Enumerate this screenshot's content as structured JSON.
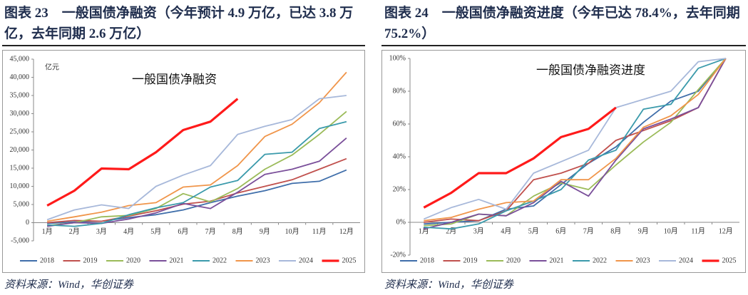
{
  "chart_data": [
    {
      "type": "line",
      "title": "图表 23　一般国债净融资（今年预计 4.9 万亿，已达 3.8 万亿，去年同期 2.6 万亿）",
      "annotation": "一般国债净融资",
      "unit": "亿元",
      "source": "资料来源：Wind，华创证券",
      "categories": [
        "1月",
        "2月",
        "3月",
        "4月",
        "5月",
        "6月",
        "7月",
        "8月",
        "9月",
        "10月",
        "11月",
        "12月"
      ],
      "ylim": [
        -5000,
        45000
      ],
      "yticks": [
        {
          "value": -5000,
          "label": "-5,000"
        },
        0,
        {
          "value": 5000,
          "label": "5,000"
        },
        {
          "value": 10000,
          "label": "10,000"
        },
        {
          "value": 15000,
          "label": "15,000"
        },
        {
          "value": 20000,
          "label": "20,000"
        },
        {
          "value": 25000,
          "label": "25,000"
        },
        {
          "value": 30000,
          "label": "30,000"
        },
        {
          "value": 35000,
          "label": "35,000"
        },
        {
          "value": 40000,
          "label": "40,000"
        },
        {
          "value": 45000,
          "label": "45,000"
        }
      ],
      "grid": false,
      "legend": "bottom",
      "series": [
        {
          "name": "2018",
          "color": "#3f6eaa",
          "values": [
            -200,
            200,
            400,
            1400,
            2200,
            3500,
            5500,
            7300,
            8800,
            10800,
            11400,
            14500
          ]
        },
        {
          "name": "2019",
          "color": "#c0504d",
          "values": [
            0,
            600,
            400,
            1800,
            3300,
            5100,
            5900,
            8200,
            10000,
            11800,
            14700,
            17600
          ]
        },
        {
          "name": "2020",
          "color": "#9bbb59",
          "values": [
            -800,
            0,
            1600,
            2000,
            3900,
            8000,
            5700,
            9400,
            14700,
            18600,
            24300,
            30600
          ]
        },
        {
          "name": "2021",
          "color": "#7a4f9a",
          "values": [
            -1000,
            0,
            -200,
            1000,
            2700,
            5300,
            3900,
            8400,
            13300,
            14700,
            16900,
            23300
          ]
        },
        {
          "name": "2022",
          "color": "#3a9aab",
          "values": [
            -600,
            -1000,
            -200,
            2200,
            4100,
            5500,
            9800,
            11600,
            18800,
            19400,
            25900,
            27800
          ]
        },
        {
          "name": "2023",
          "color": "#f0954a",
          "values": [
            400,
            1600,
            2900,
            4700,
            5500,
            9800,
            10400,
            15700,
            23700,
            27100,
            33000,
            41400
          ]
        },
        {
          "name": "2024",
          "color": "#a7b8da",
          "values": [
            800,
            3500,
            4900,
            3900,
            10000,
            13100,
            15700,
            24300,
            26500,
            28400,
            34100,
            35000
          ]
        },
        {
          "name": "2025",
          "color": "#ff1a1a",
          "values": [
            4700,
            8800,
            14900,
            14700,
            19400,
            25500,
            27800,
            34100,
            null,
            null,
            null,
            null
          ]
        }
      ]
    },
    {
      "type": "line",
      "title": "图表 24　一般国债净融资进度（今年已达 78.4%，去年同期 75.2%）",
      "annotation": "一般国债净融资进度",
      "source": "资料来源：Wind，华创证券",
      "categories": [
        "1月",
        "2月",
        "3月",
        "4月",
        "5月",
        "6月",
        "7月",
        "8月",
        "9月",
        "10月",
        "11月",
        "12月"
      ],
      "ylim": [
        -20,
        100
      ],
      "yticks": [
        {
          "value": -20,
          "label": "-20%"
        },
        {
          "value": 0,
          "label": "0%"
        },
        {
          "value": 20,
          "label": "20%"
        },
        {
          "value": 40,
          "label": "40%"
        },
        {
          "value": 60,
          "label": "60%"
        },
        {
          "value": 80,
          "label": "80%"
        },
        {
          "value": 100,
          "label": "100%"
        }
      ],
      "grid": false,
      "legend": "bottom",
      "series": [
        {
          "name": "2018",
          "color": "#3f6eaa",
          "values": [
            -1,
            0,
            1,
            8,
            10,
            23,
            36,
            46,
            61,
            74,
            80,
            100
          ]
        },
        {
          "name": "2019",
          "color": "#c0504d",
          "values": [
            0,
            2,
            1,
            7,
            26,
            30,
            36,
            50,
            56,
            62,
            70,
            100
          ]
        },
        {
          "name": "2020",
          "color": "#9bbb59",
          "values": [
            -2,
            -1,
            5,
            4,
            16,
            24,
            20,
            35,
            49,
            61,
            81,
            100
          ]
        },
        {
          "name": "2021",
          "color": "#7a4f9a",
          "values": [
            -4,
            0,
            5,
            4,
            12,
            25,
            16,
            38,
            57,
            63,
            70,
            100
          ]
        },
        {
          "name": "2022",
          "color": "#3a9aab",
          "values": [
            -3,
            -4,
            -1,
            7,
            13,
            20,
            38,
            44,
            69,
            72,
            94,
            100
          ]
        },
        {
          "name": "2023",
          "color": "#f0954a",
          "values": [
            1,
            3,
            8,
            12,
            13,
            26,
            26,
            39,
            58,
            65,
            78,
            100
          ]
        },
        {
          "name": "2024",
          "color": "#a7b8da",
          "values": [
            2,
            9,
            14,
            8,
            30,
            37,
            44,
            70,
            75,
            80,
            98,
            100
          ]
        },
        {
          "name": "2025",
          "color": "#ff1a1a",
          "values": [
            9,
            18,
            30,
            30,
            39,
            52,
            57,
            70,
            null,
            null,
            null,
            null
          ]
        }
      ]
    }
  ]
}
